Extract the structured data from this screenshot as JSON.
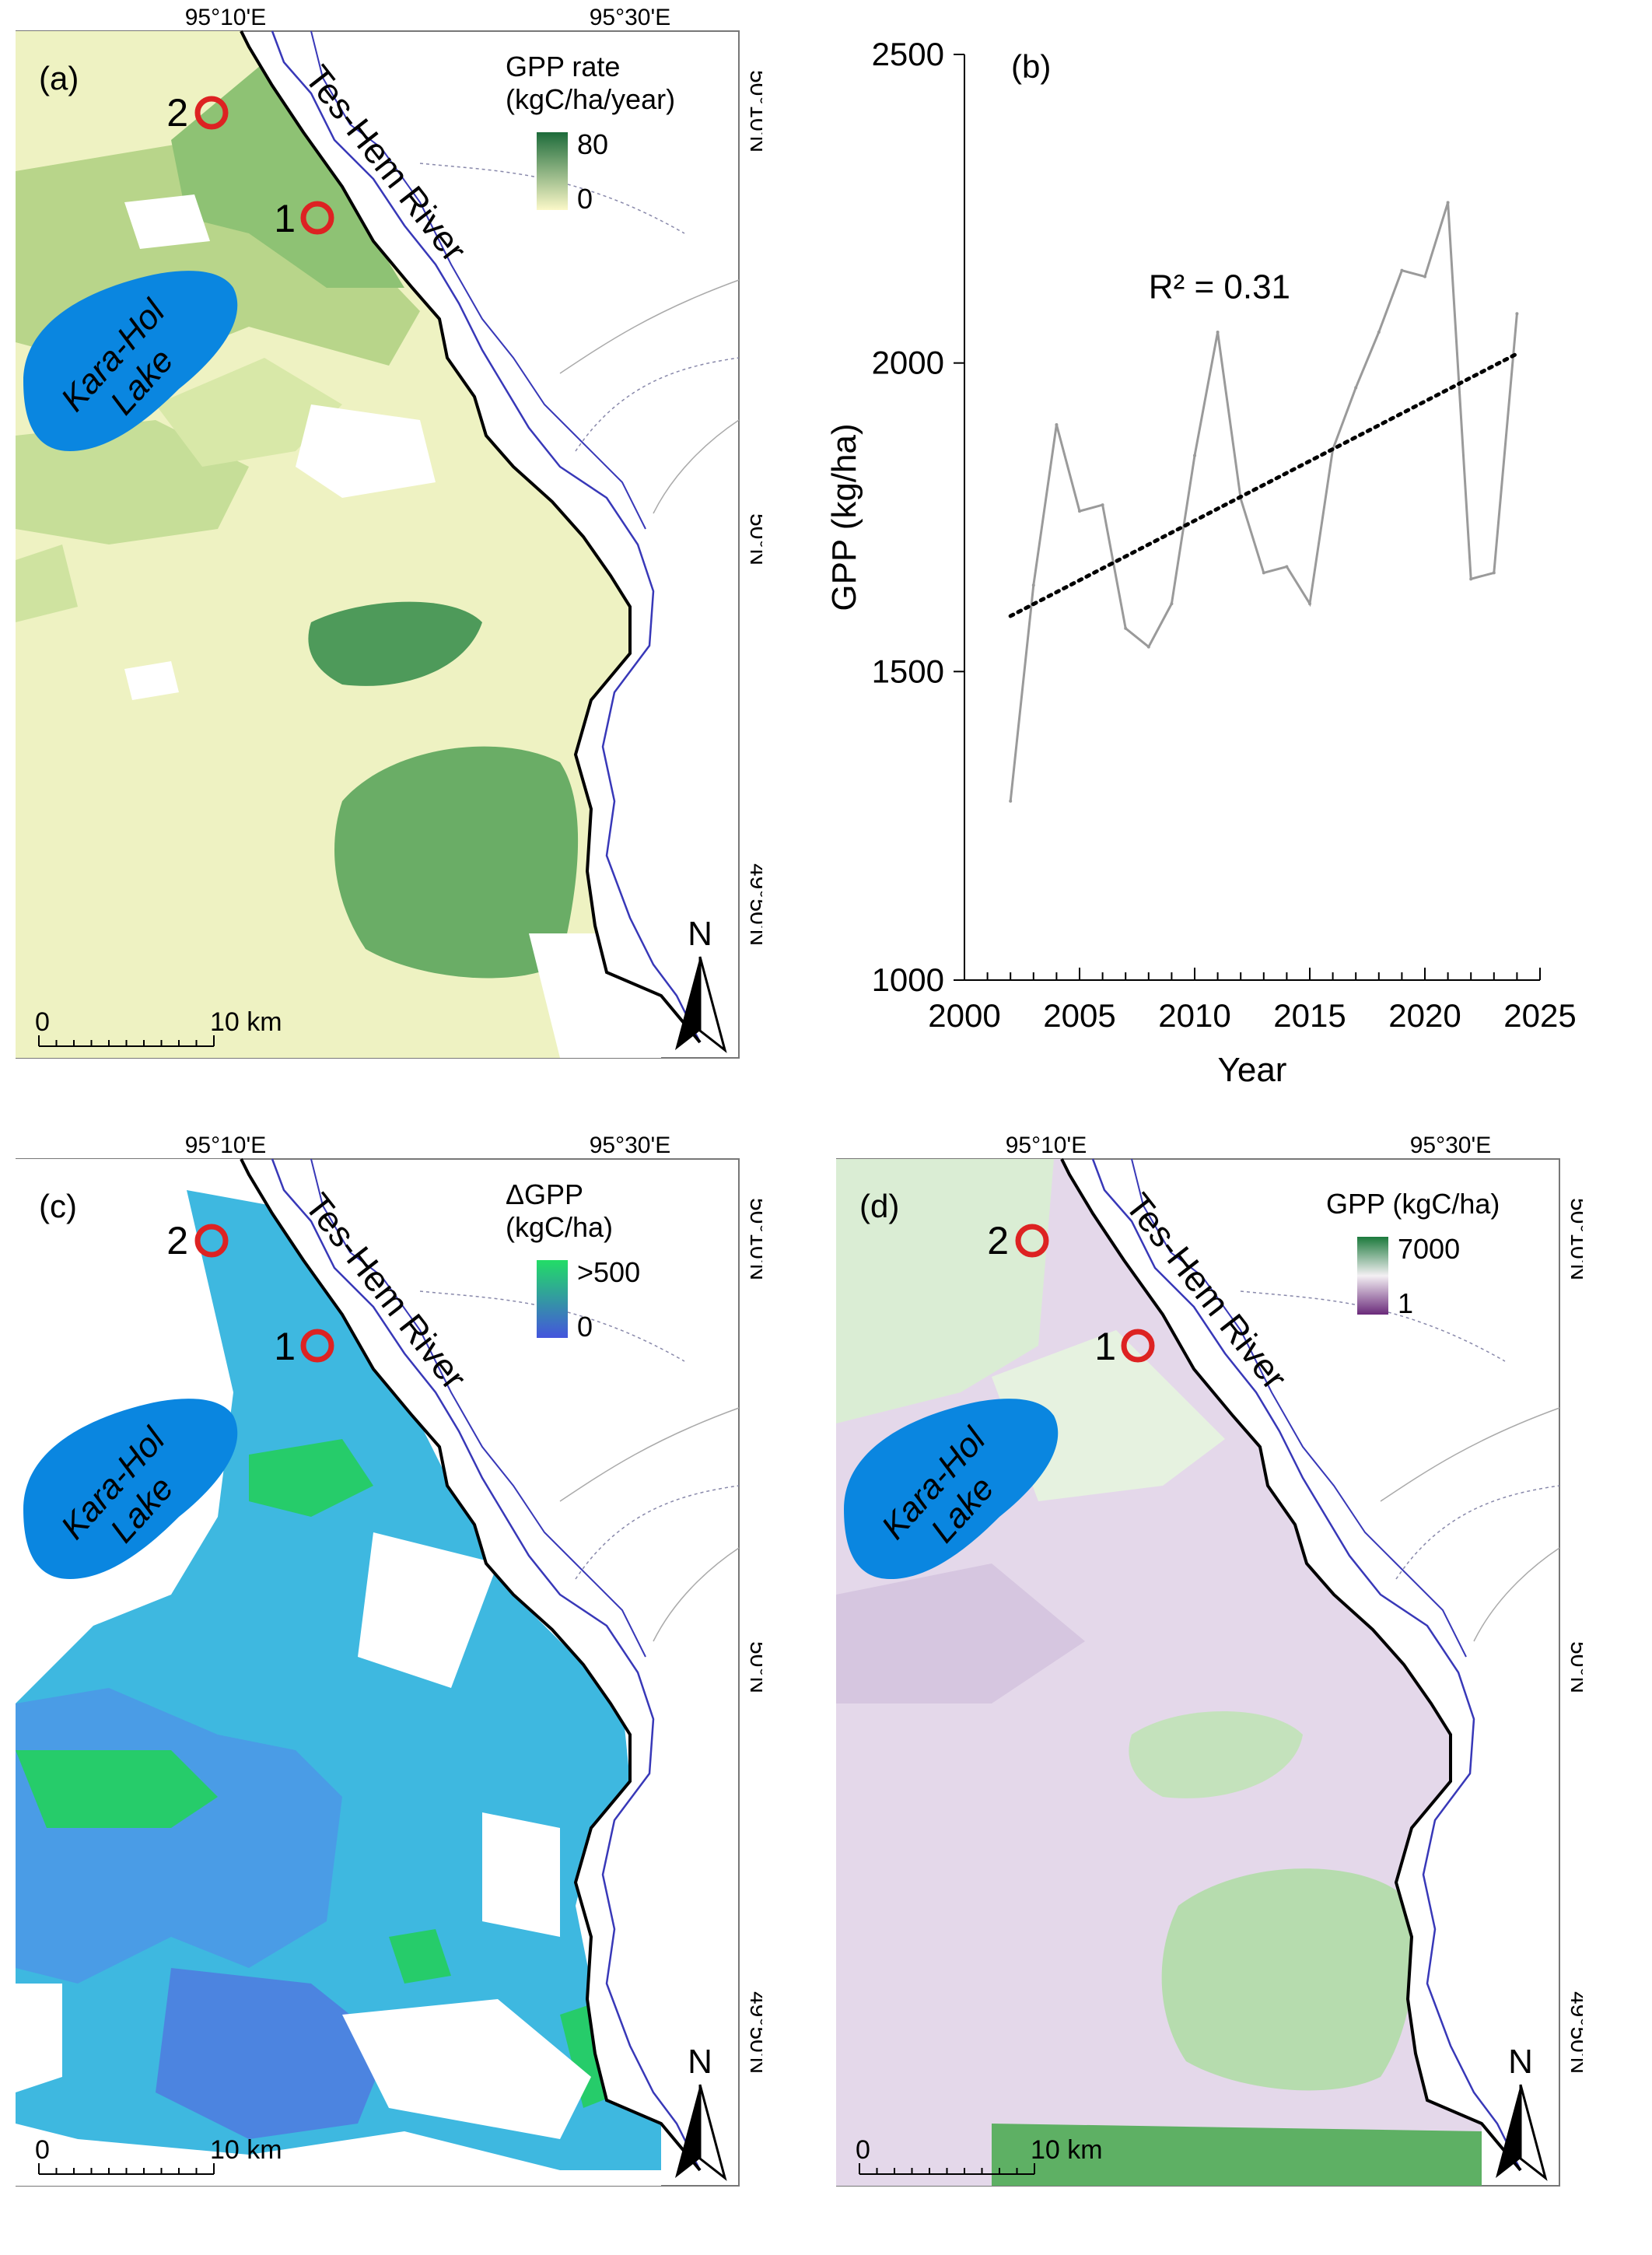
{
  "panels": {
    "a": {
      "label": "(a)",
      "lon_left": "95°10'E",
      "lon_right": "95°30'E",
      "lat_top": "50°10'N",
      "lat_mid": "50°N",
      "lat_bottom": "49°50'N",
      "river": "Tes-Hem River",
      "lake_line1": "Kara-Hol",
      "lake_line2": "Lake",
      "site1": "1",
      "site2": "2",
      "legend_title1": "GPP rate",
      "legend_title2": "(kgC/ha/year)",
      "legend_max": "80",
      "legend_min": "0",
      "legend_colors": [
        "#1d6b3a",
        "#fbf8c8"
      ],
      "scale_zero": "0",
      "scale_label": "10 km",
      "north": "N"
    },
    "c": {
      "label": "(c)",
      "lon_left": "95°10'E",
      "lon_right": "95°30'E",
      "lat_top": "50°10'N",
      "lat_mid": "50°N",
      "lat_bottom": "49°50'N",
      "river": "Tes-Hem River",
      "lake_line1": "Kara-Hol",
      "lake_line2": "Lake",
      "site1": "1",
      "site2": "2",
      "legend_title1": "ΔGPP",
      "legend_title2": "(kgC/ha)",
      "legend_max": ">500",
      "legend_min": "0",
      "legend_colors": [
        "#22dd66",
        "#4455dd"
      ],
      "scale_zero": "0",
      "scale_label": "10 km",
      "north": "N"
    },
    "d": {
      "label": "(d)",
      "lon_left": "95°10'E",
      "lon_right": "95°30'E",
      "lat_top": "50°10'N",
      "lat_mid": "50°N",
      "lat_bottom": "49°50'N",
      "river": "Tes-Hem River",
      "lake_line1": "Kara-Hol",
      "lake_line2": "Lake",
      "site1": "1",
      "site2": "2",
      "legend_title1": "GPP (kgC/ha)",
      "legend_title2": "",
      "legend_max": "7000",
      "legend_min": "1",
      "legend_colors": [
        "#1c7a3c",
        "#f3f0f3",
        "#6a2a7a"
      ],
      "scale_zero": "0",
      "scale_label": "10 km",
      "north": "N"
    }
  },
  "colors": {
    "lake": "#0a86e0",
    "river": "#3838b8",
    "border": "#000000",
    "site_ring": "#dd2222"
  },
  "chart_data": {
    "type": "line",
    "panel_label": "(b)",
    "xlabel": "Year",
    "ylabel": "GPP (kg/ha)",
    "xlim": [
      2000,
      2025
    ],
    "ylim": [
      1000,
      2500
    ],
    "xticks": [
      2000,
      2005,
      2010,
      2015,
      2020,
      2025
    ],
    "yticks": [
      1000,
      1500,
      2000,
      2500
    ],
    "annotation": "R² = 0.31",
    "series": [
      {
        "x": [
          2002,
          2003,
          2004,
          2005,
          2006,
          2007,
          2008,
          2009,
          2010,
          2011,
          2012,
          2013,
          2014,
          2015,
          2016,
          2017,
          2018,
          2019,
          2020,
          2021,
          2022,
          2023,
          2024
        ],
        "values": [
          1290,
          1640,
          1900,
          1760,
          1770,
          1570,
          1540,
          1610,
          1850,
          2050,
          1780,
          1660,
          1670,
          1610,
          1860,
          1960,
          2050,
          2150,
          2140,
          2260,
          1650,
          1660,
          2080
        ]
      }
    ],
    "trend": {
      "x": [
        2002,
        2024
      ],
      "y": [
        1590,
        2015
      ]
    }
  }
}
